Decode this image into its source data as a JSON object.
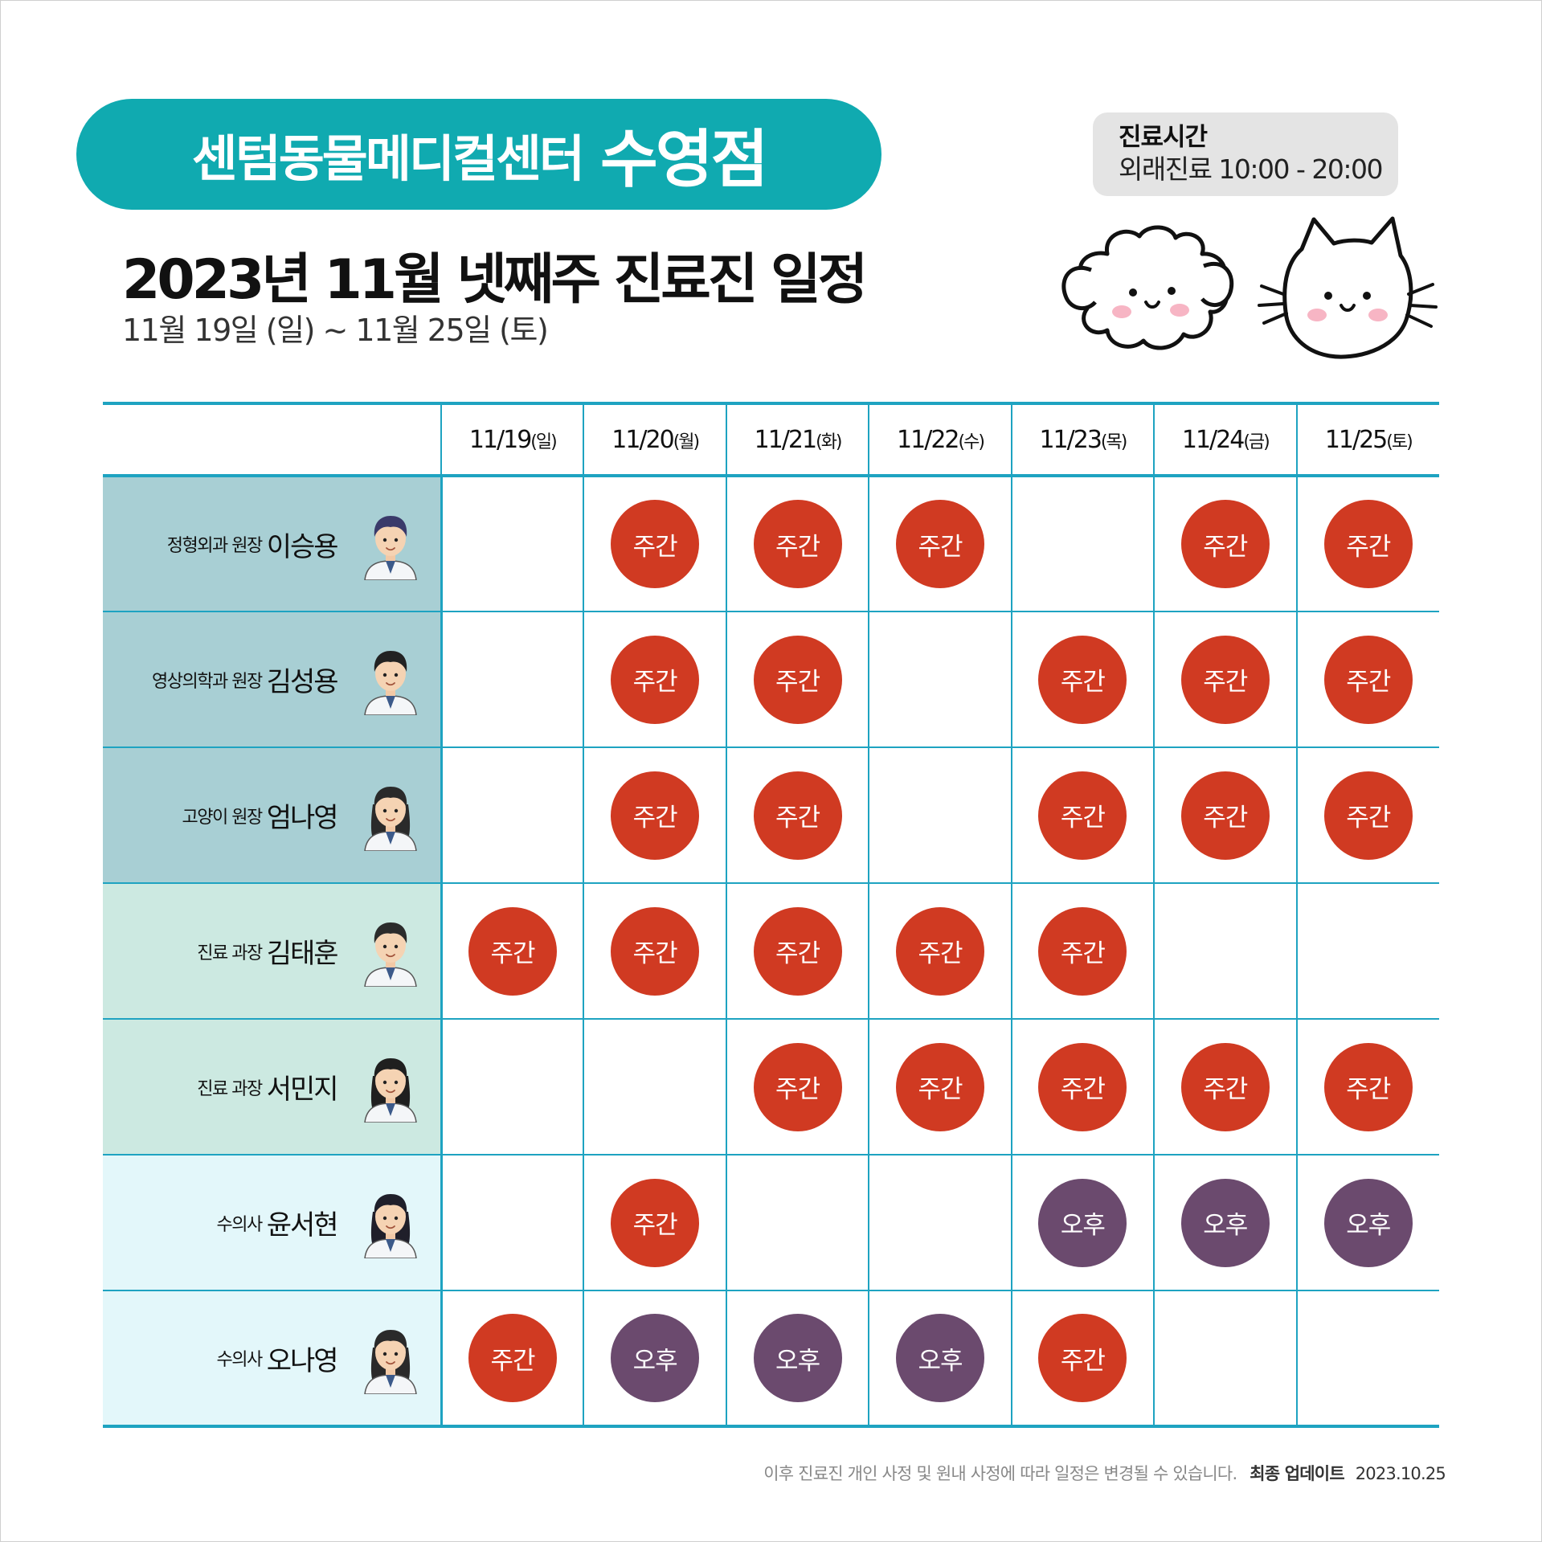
{
  "header": {
    "clinic_name": "센텀동물메디컬센터",
    "branch": "수영점",
    "title": "2023년 11월 넷째주 진료진 일정",
    "date_range": "11월 19일 (일) ~ 11월 25일 (토)"
  },
  "hours": {
    "title": "진료시간",
    "body": "외래진료 10:00 - 20:00"
  },
  "table": {
    "days": [
      {
        "date": "11/19",
        "dow": "(일)"
      },
      {
        "date": "11/20",
        "dow": "(월)"
      },
      {
        "date": "11/21",
        "dow": "(화)"
      },
      {
        "date": "11/22",
        "dow": "(수)"
      },
      {
        "date": "11/23",
        "dow": "(목)"
      },
      {
        "date": "11/24",
        "dow": "(금)"
      },
      {
        "date": "11/25",
        "dow": "(토)"
      }
    ],
    "doctors": [
      {
        "role": "정형외과 원장",
        "name": "이승용",
        "schedule": [
          "",
          "주간",
          "주간",
          "주간",
          "",
          "주간",
          "주간"
        ]
      },
      {
        "role": "영상의학과 원장",
        "name": "김성용",
        "schedule": [
          "",
          "주간",
          "주간",
          "",
          "주간",
          "주간",
          "주간"
        ]
      },
      {
        "role": "고양이 원장",
        "name": "엄나영",
        "schedule": [
          "",
          "주간",
          "주간",
          "",
          "주간",
          "주간",
          "주간"
        ]
      },
      {
        "role": "진료 과장",
        "name": "김태훈",
        "schedule": [
          "주간",
          "주간",
          "주간",
          "주간",
          "주간",
          "",
          ""
        ]
      },
      {
        "role": "진료 과장",
        "name": "서민지",
        "schedule": [
          "",
          "",
          "주간",
          "주간",
          "주간",
          "주간",
          "주간"
        ]
      },
      {
        "role": "수의사",
        "name": "윤서현",
        "schedule": [
          "",
          "주간",
          "",
          "",
          "오후",
          "오후",
          "오후"
        ]
      },
      {
        "role": "수의사",
        "name": "오나영",
        "schedule": [
          "주간",
          "오후",
          "오후",
          "오후",
          "주간",
          "",
          ""
        ]
      }
    ]
  },
  "footnote": {
    "notice": "이후 진료진 개인 사정 및 원내 사정에 따라 일정은 변경될 수 있습니다.",
    "update_label": "최종 업데이트",
    "update_date": "2023.10.25"
  },
  "colors": {
    "accent_teal": "#10aab0",
    "grid_line": "#1ea3c1",
    "day_shift": "#d03a22",
    "afternoon_shift": "#6b4a6e"
  },
  "icons": [
    "dog-illustration-icon",
    "cat-illustration-icon",
    "doctor-avatar-icon"
  ]
}
